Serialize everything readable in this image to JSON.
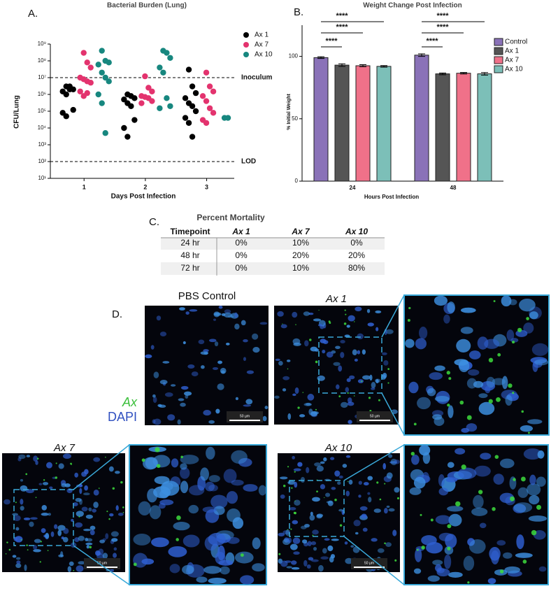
{
  "panel_labels": [
    "A.",
    "B.",
    "C.",
    "D."
  ],
  "chart_data": [
    {
      "type": "scatter",
      "title": "Bacterial Burden (Lung)",
      "y_label": "CFU/Lung",
      "x_label": "Days Post Infection",
      "log_y": true,
      "ylim": [
        10,
        1000000000
      ],
      "yticks": [
        {
          "value": 10,
          "label": "10¹"
        },
        {
          "value": 100,
          "label": "10²"
        },
        {
          "value": 1000,
          "label": "10³"
        },
        {
          "value": 10000,
          "label": "10⁴"
        },
        {
          "value": 100000,
          "label": "10⁵"
        },
        {
          "value": 1000000,
          "label": "10⁶"
        },
        {
          "value": 10000000,
          "label": "10⁷"
        },
        {
          "value": 100000000,
          "label": "10⁸"
        },
        {
          "value": 1000000000,
          "label": "10⁹"
        }
      ],
      "xlim": [
        0.45,
        3.45
      ],
      "xticks": [
        1,
        2,
        3
      ],
      "legend": "right",
      "reference_lines": [
        {
          "value": 10000000,
          "label": "Inoculum"
        },
        {
          "value": 100,
          "label": "LOD"
        }
      ],
      "series": [
        {
          "name": "Ax 1",
          "color": "#000000",
          "x": [
            1,
            1,
            1,
            1,
            1,
            1,
            1,
            1,
            1,
            1,
            2,
            2,
            2,
            2,
            2,
            2,
            2,
            2,
            2,
            3,
            3,
            3,
            3,
            3,
            3,
            3,
            3,
            3,
            3
          ],
          "values": [
            3000000,
            2500000,
            2000000,
            1500000,
            1000000,
            2000000,
            120000,
            80000,
            50000,
            3000000,
            1000000,
            800000,
            600000,
            500000,
            300000,
            200000,
            30000,
            10000,
            3000,
            30000000,
            3000000,
            1200000,
            600000,
            300000,
            200000,
            100000,
            40000,
            20000,
            3000
          ]
        },
        {
          "name": "Ax 7",
          "color": "#e3336e",
          "x": [
            1,
            1,
            1,
            1,
            1,
            1,
            1,
            1,
            1,
            1,
            2,
            2,
            2,
            2,
            2,
            2,
            2,
            2,
            3,
            3,
            3,
            3,
            3,
            3,
            3,
            3,
            3
          ],
          "values": [
            300000000,
            80000000,
            40000000,
            10000000,
            8000000,
            6000000,
            5000000,
            1500000,
            800000,
            1200000,
            12000000,
            2500000,
            1500000,
            800000,
            700000,
            600000,
            400000,
            300000,
            20000000,
            3000000,
            1500000,
            800000,
            400000,
            150000,
            80000,
            30000,
            20000
          ]
        },
        {
          "name": "Ax 10",
          "color": "#17877f",
          "x": [
            1,
            1,
            1,
            1,
            1,
            1,
            1,
            1,
            1,
            1,
            2,
            2,
            2,
            2,
            2,
            2,
            2,
            2,
            3,
            3
          ],
          "values": [
            400000000,
            100000000,
            80000000,
            60000000,
            20000000,
            10000000,
            6000000,
            1000000,
            300000,
            5000,
            400000000,
            300000000,
            150000000,
            40000000,
            20000000,
            600000,
            200000,
            150000,
            40000,
            40000
          ]
        }
      ]
    },
    {
      "type": "bar",
      "title": "Weight Change Post Infection",
      "y_label": "% Initial Weight",
      "x_label": "Hours Post Infection",
      "categories": [
        "24",
        "48"
      ],
      "ylim": [
        0,
        125
      ],
      "yticks": [
        0,
        50,
        100
      ],
      "legend": "right",
      "significance": [
        "****",
        "****",
        "****",
        "****",
        "****",
        "****"
      ],
      "series": [
        {
          "name": "Control",
          "color": "#8a72b8",
          "values": [
            99,
            101
          ],
          "errors": [
            0.7,
            1
          ]
        },
        {
          "name": "Ax 1",
          "color": "#555555",
          "values": [
            93,
            86
          ],
          "errors": [
            1,
            0.7
          ]
        },
        {
          "name": "Ax 7",
          "color": "#f07189",
          "values": [
            92.5,
            86.5
          ],
          "errors": [
            0.8,
            0.6
          ]
        },
        {
          "name": "Ax 10",
          "color": "#7cbfb8",
          "values": [
            92,
            86
          ],
          "errors": [
            0.6,
            1
          ]
        }
      ]
    }
  ],
  "table": {
    "title": "Percent Mortality",
    "header": [
      "Timepoint",
      "Ax 1",
      "Ax 7",
      "Ax 10"
    ],
    "rows": [
      [
        "24 hr",
        "0%",
        "10%",
        "0%"
      ],
      [
        "48 hr",
        "0%",
        "20%",
        "20%"
      ],
      [
        "72 hr",
        "0%",
        "10%",
        "80%"
      ]
    ]
  },
  "images": {
    "titles": [
      "PBS Control",
      "Ax 1",
      "Ax 7",
      "Ax 10"
    ],
    "stain_legend": [
      "Ax",
      "DAPI"
    ],
    "scale_bar": "50 µm"
  }
}
